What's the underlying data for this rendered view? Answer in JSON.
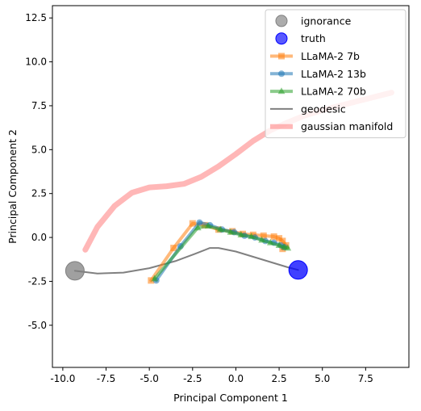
{
  "chart_data": {
    "type": "line",
    "title": "",
    "xlabel": "Principal Component 1",
    "ylabel": "Principal Component 2",
    "xlim": [
      -10.6,
      10.0
    ],
    "ylim": [
      -7.4,
      13.2
    ],
    "xticks": [
      -10.0,
      -7.5,
      -5.0,
      -2.5,
      0.0,
      2.5,
      5.0,
      7.5
    ],
    "yticks": [
      -5.0,
      -2.5,
      0.0,
      2.5,
      5.0,
      7.5,
      10.0,
      12.5
    ],
    "grid": false,
    "legend_position": "top-right",
    "series": [
      {
        "name": "ignorance",
        "kind": "point",
        "color": "#808080",
        "points": [
          [
            -9.3,
            -1.9
          ]
        ]
      },
      {
        "name": "truth",
        "kind": "point",
        "color": "#0000ff",
        "points": [
          [
            3.6,
            -1.85
          ]
        ]
      },
      {
        "name": "LLaMA-2 7b",
        "kind": "line",
        "marker": "square",
        "color": "#ff7f0e",
        "points": [
          [
            -4.9,
            -2.45
          ],
          [
            -3.6,
            -0.6
          ],
          [
            -2.5,
            0.8
          ],
          [
            -1.8,
            0.7
          ],
          [
            -1.0,
            0.45
          ],
          [
            -0.2,
            0.35
          ],
          [
            0.4,
            0.2
          ],
          [
            1.0,
            0.15
          ],
          [
            1.6,
            0.1
          ],
          [
            2.2,
            0.05
          ],
          [
            2.5,
            -0.05
          ],
          [
            2.7,
            -0.2
          ],
          [
            2.9,
            -0.45
          ],
          [
            2.7,
            -0.65
          ]
        ]
      },
      {
        "name": "LLaMA-2 13b",
        "kind": "line",
        "marker": "circle",
        "color": "#1f77b4",
        "points": [
          [
            -4.6,
            -2.45
          ],
          [
            -3.2,
            -0.5
          ],
          [
            -2.1,
            0.85
          ],
          [
            -1.5,
            0.7
          ],
          [
            -0.8,
            0.45
          ],
          [
            -0.1,
            0.3
          ],
          [
            0.5,
            0.1
          ],
          [
            1.1,
            0.0
          ],
          [
            1.7,
            -0.2
          ],
          [
            2.2,
            -0.3
          ],
          [
            2.6,
            -0.45
          ],
          [
            2.8,
            -0.55
          ]
        ]
      },
      {
        "name": "LLaMA-2 70b",
        "kind": "line",
        "marker": "triangle",
        "color": "#2ca02c",
        "points": [
          [
            -4.7,
            -2.35
          ],
          [
            -2.2,
            0.55
          ],
          [
            -1.6,
            0.65
          ],
          [
            -0.9,
            0.45
          ],
          [
            -0.3,
            0.3
          ],
          [
            0.3,
            0.15
          ],
          [
            0.9,
            0.05
          ],
          [
            1.5,
            -0.15
          ],
          [
            2.0,
            -0.3
          ],
          [
            2.5,
            -0.45
          ],
          [
            2.8,
            -0.55
          ],
          [
            3.0,
            -0.6
          ]
        ]
      },
      {
        "name": "geodesic",
        "kind": "line",
        "color": "#808080",
        "points": [
          [
            -9.3,
            -1.9
          ],
          [
            -8.0,
            -2.05
          ],
          [
            -6.5,
            -2.0
          ],
          [
            -5.0,
            -1.75
          ],
          [
            -3.5,
            -1.35
          ],
          [
            -2.4,
            -0.95
          ],
          [
            -1.5,
            -0.6
          ],
          [
            -1.0,
            -0.6
          ],
          [
            0.0,
            -0.8
          ],
          [
            1.0,
            -1.1
          ],
          [
            2.0,
            -1.4
          ],
          [
            3.0,
            -1.7
          ],
          [
            3.6,
            -1.85
          ]
        ]
      },
      {
        "name": "gaussian manifold",
        "kind": "line",
        "color": "#ff9999",
        "points": [
          [
            -8.7,
            -0.7
          ],
          [
            -8.0,
            0.6
          ],
          [
            -7.0,
            1.8
          ],
          [
            -6.0,
            2.55
          ],
          [
            -5.0,
            2.85
          ],
          [
            -4.0,
            2.92
          ],
          [
            -3.0,
            3.05
          ],
          [
            -2.0,
            3.45
          ],
          [
            -1.0,
            4.05
          ],
          [
            0.0,
            4.75
          ],
          [
            1.0,
            5.5
          ],
          [
            2.0,
            6.1
          ],
          [
            3.0,
            6.55
          ],
          [
            4.0,
            6.95
          ],
          [
            5.0,
            7.25
          ],
          [
            6.0,
            7.5
          ],
          [
            7.0,
            7.75
          ],
          [
            8.0,
            8.0
          ],
          [
            9.0,
            8.25
          ]
        ]
      }
    ]
  }
}
